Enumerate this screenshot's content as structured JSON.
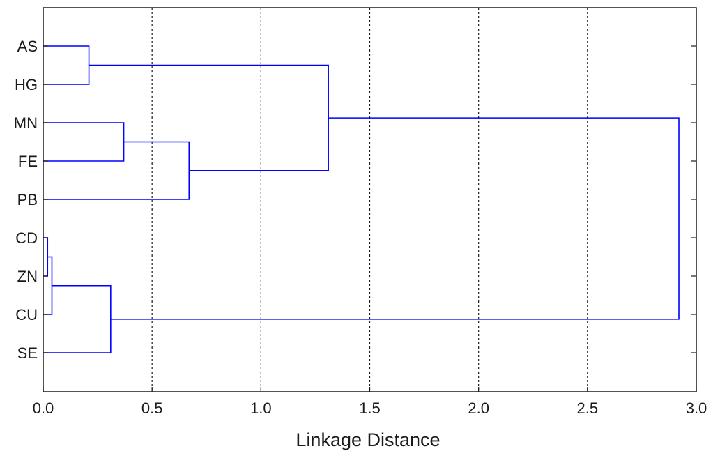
{
  "chart_data": {
    "type": "dendrogram",
    "orientation": "horizontal",
    "xlabel": "Linkage Distance",
    "xlim": [
      0.0,
      3.0
    ],
    "xticks": [
      "0.0",
      "0.5",
      "1.0",
      "1.5",
      "2.0",
      "2.5",
      "3.0"
    ],
    "grid": "vertical dashed",
    "link_color": "#0000ff",
    "leaves": [
      "AS",
      "HG",
      "MN",
      "FE",
      "PB",
      "CD",
      "ZN",
      "CU",
      "SE"
    ],
    "merges": [
      {
        "left": "CD",
        "right": "ZN",
        "distance": 0.02
      },
      {
        "left": "CD+ZN",
        "right": "CU",
        "distance": 0.04
      },
      {
        "left": "AS",
        "right": "HG",
        "distance": 0.21
      },
      {
        "left": "CD+ZN+CU",
        "right": "SE",
        "distance": 0.31
      },
      {
        "left": "MN",
        "right": "FE",
        "distance": 0.37
      },
      {
        "left": "MN+FE",
        "right": "PB",
        "distance": 0.67
      },
      {
        "left": "AS+HG",
        "right": "MN+FE+PB",
        "distance": 1.31
      },
      {
        "left": "AS+HG+MN+FE+PB",
        "right": "CD+ZN+CU+SE",
        "distance": 2.92
      }
    ]
  }
}
